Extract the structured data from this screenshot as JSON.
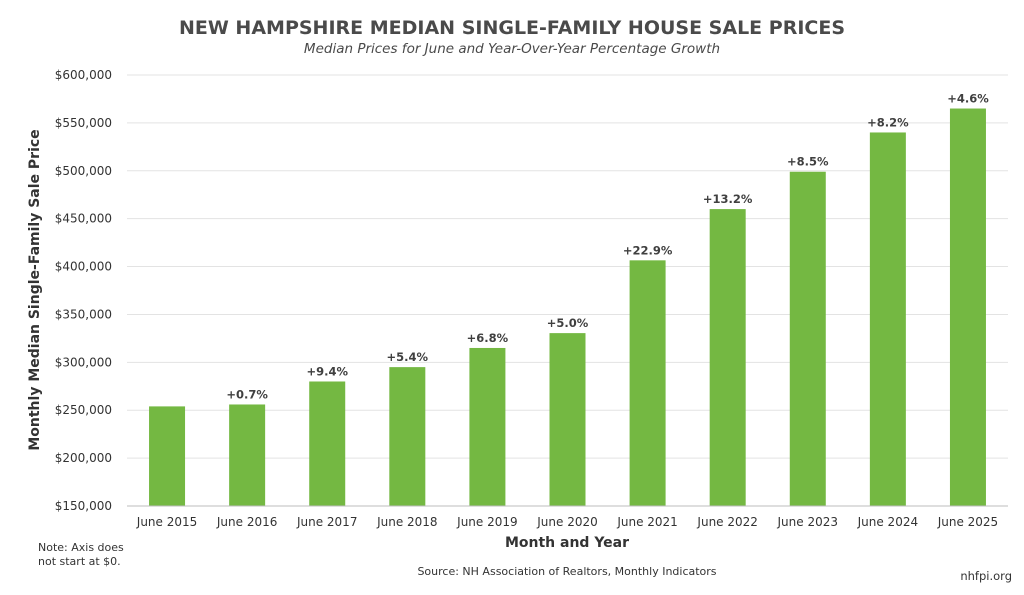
{
  "chart_data": {
    "type": "bar",
    "title": "NEW HAMPSHIRE MEDIAN SINGLE-FAMILY HOUSE SALE PRICES",
    "subtitle": "Median Prices for June and Year-Over-Year Percentage Growth",
    "xlabel": "Month and Year",
    "ylabel": "Monthly Median Single-Family Sale Price",
    "categories": [
      "June 2015",
      "June 2016",
      "June 2017",
      "June 2018",
      "June 2019",
      "June 2020",
      "June 2021",
      "June 2022",
      "June 2023",
      "June 2024",
      "June 2025"
    ],
    "values": [
      254000,
      256000,
      280000,
      295000,
      315000,
      330500,
      406500,
      460000,
      499000,
      540000,
      565000
    ],
    "data_labels": [
      "",
      "+0.7%",
      "+9.4%",
      "+5.4%",
      "+6.8%",
      "+5.0%",
      "+22.9%",
      "+13.2%",
      "+8.5%",
      "+8.2%",
      "+4.6%"
    ],
    "ylim": [
      150000,
      600000
    ],
    "yticks": [
      150000,
      200000,
      250000,
      300000,
      350000,
      400000,
      450000,
      500000,
      550000,
      600000
    ],
    "ytick_labels": [
      "$150,000",
      "$200,000",
      "$250,000",
      "$300,000",
      "$350,000",
      "$400,000",
      "$450,000",
      "$500,000",
      "$550,000",
      "$600,000"
    ],
    "grid": true,
    "bar_color": "#74b842"
  },
  "footer": {
    "note_line1": "Note: Axis does",
    "note_line2": "not start at $0.",
    "source": "Source: NH Association of Realtors, Monthly Indicators",
    "credit": "nhfpi.org"
  }
}
